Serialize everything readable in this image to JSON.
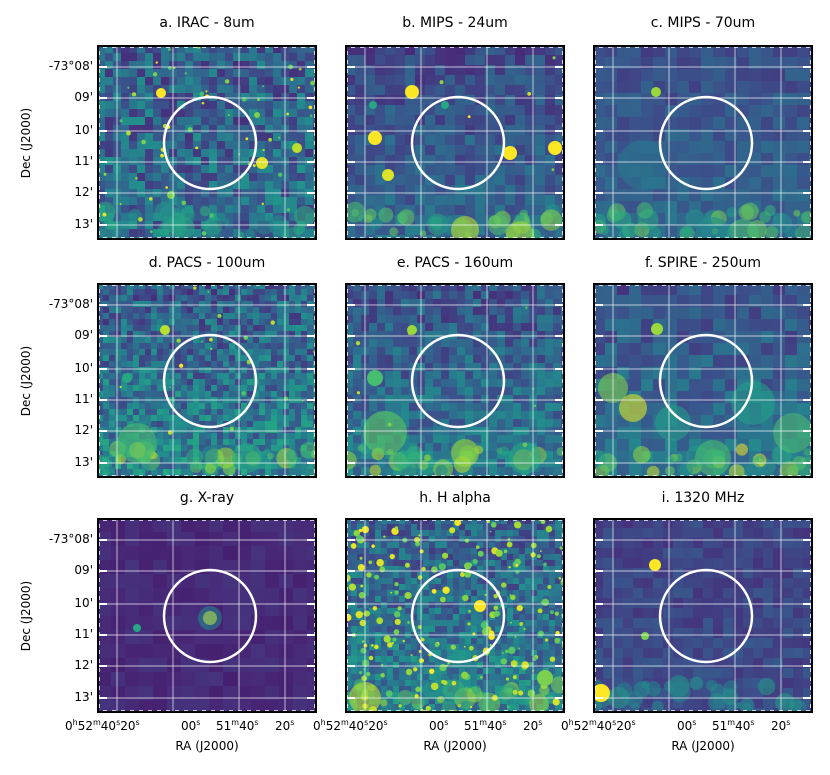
{
  "panels": [
    {
      "title": "a. IRAC - 8um",
      "band": "irac8"
    },
    {
      "title": "b. MIPS - 24um",
      "band": "mips24"
    },
    {
      "title": "c. MIPS - 70um",
      "band": "mips70"
    },
    {
      "title": "d. PACS - 100um",
      "band": "pacs100"
    },
    {
      "title": "e. PACS - 160um",
      "band": "pacs160"
    },
    {
      "title": "f. SPIRE - 250um",
      "band": "spire250"
    },
    {
      "title": "g. X-ray",
      "band": "xray"
    },
    {
      "title": "h. H alpha",
      "band": "halpha"
    },
    {
      "title": "i. 1320 MHz",
      "band": "radio1320"
    }
  ],
  "axes": {
    "ylabel": "Dec (J2000)",
    "xlabel": "RA (J2000)",
    "dec_ticks": [
      "-73°08'",
      "09'",
      "10'",
      "11'",
      "12'",
      "13'"
    ],
    "ra_ticks": [
      {
        "main": "0",
        "h": "h",
        "min": "52",
        "m": "m",
        "sec": "40",
        "s": "s"
      },
      {
        "main": "20",
        "s": "s"
      },
      {
        "main": "00",
        "s": "s"
      },
      {
        "main": "51",
        "m": "m",
        "sec": "40",
        "s": "s"
      },
      {
        "main": "20",
        "s": "s"
      }
    ]
  },
  "colors": {
    "colormap": "viridis",
    "low": "#440154",
    "mid": "#21918c",
    "high": "#fde725",
    "grid": "#ffffff",
    "circle": "#ffffff"
  }
}
